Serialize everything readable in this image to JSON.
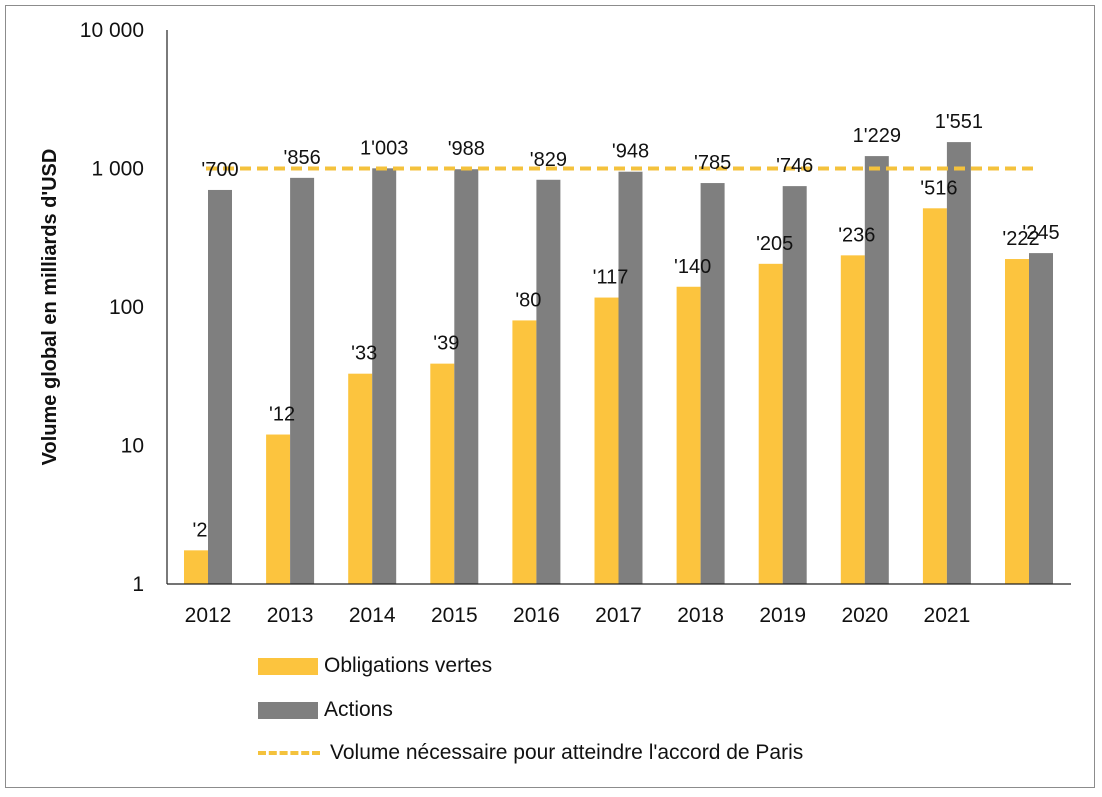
{
  "chart_data": {
    "type": "bar",
    "ylabel": "Volume global en milliards d'USD",
    "yscale": "log",
    "ylim": [
      1,
      10000
    ],
    "yticks": [
      {
        "value": 1,
        "label": "1"
      },
      {
        "value": 10,
        "label": "10"
      },
      {
        "value": 100,
        "label": "100"
      },
      {
        "value": 1000,
        "label": "1 000"
      },
      {
        "value": 10000,
        "label": "10 000"
      }
    ],
    "categories": [
      "2012",
      "2013",
      "2014",
      "2015",
      "2016",
      "2017",
      "2018",
      "2019",
      "2020",
      "2021",
      ""
    ],
    "series": [
      {
        "name": "Obligations vertes",
        "color": "#fcc43e",
        "values": [
          1.75,
          12,
          33,
          39,
          80,
          117,
          140,
          205,
          236,
          516,
          222
        ],
        "labels": [
          "'2",
          "'12",
          "'33",
          "'39",
          "'80",
          "'117",
          "'140",
          "'205",
          "'236",
          "'516",
          "'222"
        ]
      },
      {
        "name": "Actions",
        "color": "#7f7f7f",
        "values": [
          700,
          856,
          1003,
          988,
          829,
          948,
          785,
          746,
          1229,
          1551,
          245
        ],
        "labels": [
          "'700",
          "'856",
          "1'003",
          "'988",
          "'829",
          "'948",
          "'785",
          "'746",
          "1'229",
          "1'551",
          "'245"
        ]
      }
    ],
    "reference_line": {
      "name": "Volume nécessaire pour atteindre l'accord de Paris",
      "value": 1000,
      "color": "#f4c23c",
      "style": "dashed"
    },
    "legend_position": "bottom-left",
    "grid": false
  }
}
